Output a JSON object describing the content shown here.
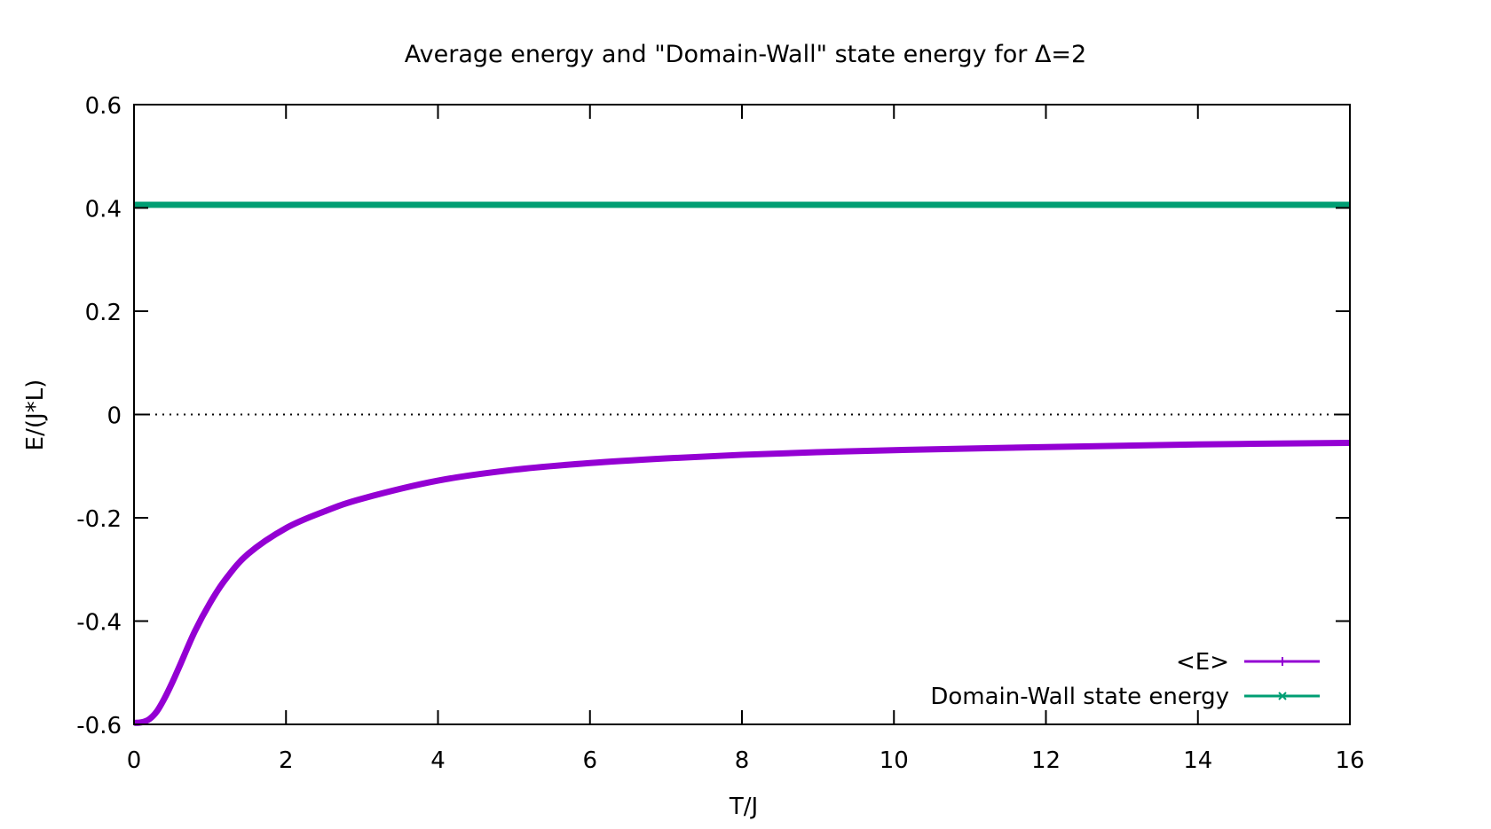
{
  "chart_data": {
    "type": "line",
    "title": "Average energy and \"Domain-Wall\" state energy for Δ=2",
    "xlabel": "T/J",
    "ylabel": "E/(J*L)",
    "xlim": [
      0,
      16
    ],
    "ylim": [
      -0.6,
      0.6
    ],
    "xticks": [
      0,
      2,
      4,
      6,
      8,
      10,
      12,
      14,
      16
    ],
    "yticks": [
      -0.6,
      -0.4,
      -0.2,
      0,
      0.2,
      0.4,
      0.6
    ],
    "xtick_labels": [
      "0",
      "2",
      "4",
      "6",
      "8",
      "10",
      "12",
      "14",
      "16"
    ],
    "ytick_labels": [
      "-0.6",
      "-0.4",
      "-0.2",
      "0",
      "0.2",
      "0.4",
      "0.6"
    ],
    "zero_line": "dotted",
    "grid": false,
    "legend_position": "bottom-right",
    "series": [
      {
        "name": "<E>",
        "color": "#9400D3",
        "marker": "plus",
        "x": [
          0,
          0.1,
          0.2,
          0.3,
          0.4,
          0.5,
          0.6,
          0.8,
          1.0,
          1.2,
          1.5,
          2.0,
          2.5,
          3.0,
          4.0,
          5.0,
          6.0,
          7.0,
          8.0,
          9.0,
          10.0,
          12.0,
          14.0,
          16.0
        ],
        "y": [
          -0.597,
          -0.596,
          -0.59,
          -0.575,
          -0.55,
          -0.52,
          -0.487,
          -0.42,
          -0.365,
          -0.32,
          -0.27,
          -0.22,
          -0.188,
          -0.163,
          -0.128,
          -0.107,
          -0.094,
          -0.085,
          -0.078,
          -0.073,
          -0.069,
          -0.063,
          -0.058,
          -0.055
        ]
      },
      {
        "name": "Domain-Wall state energy",
        "color": "#009E73",
        "marker": "cross",
        "x": [
          0,
          16
        ],
        "y": [
          0.406,
          0.406
        ]
      }
    ]
  }
}
